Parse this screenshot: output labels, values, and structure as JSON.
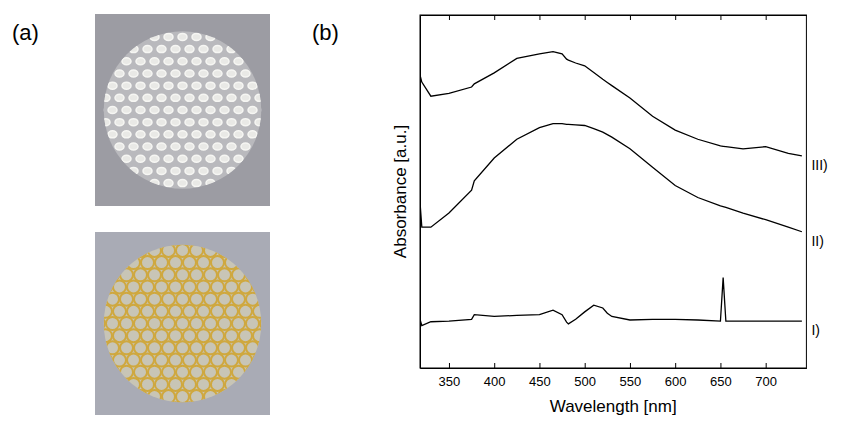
{
  "panel_labels": [
    "(a)",
    "(b)"
  ],
  "chart_data": {
    "type": "line",
    "xlabel": "Wavelength [nm]",
    "ylabel": "Absorbance [a.u.]",
    "x": [
      318,
      320,
      330,
      350,
      375,
      378,
      400,
      425,
      450,
      465,
      475,
      480,
      482,
      490,
      500,
      510,
      520,
      525,
      530,
      550,
      575,
      600,
      625,
      650,
      653,
      656,
      675,
      700,
      725,
      740
    ],
    "xlim": [
      318,
      745
    ],
    "xticks": [
      350,
      400,
      450,
      500,
      550,
      600,
      650,
      700
    ],
    "ylim": [
      0,
      100
    ],
    "tick_labels": "x",
    "series": [
      {
        "name": "I)",
        "color": "#000000",
        "values": [
          13.8,
          12.0,
          13.1,
          13.3,
          13.8,
          15.1,
          14.6,
          14.9,
          15.1,
          16.4,
          15.1,
          13.0,
          12.5,
          13.8,
          15.9,
          17.8,
          17.0,
          15.5,
          14.6,
          13.6,
          13.8,
          13.8,
          13.6,
          13.3,
          25.6,
          13.3,
          13.3,
          13.3,
          13.3,
          13.3
        ]
      },
      {
        "name": "II)",
        "color": "#000000",
        "values": [
          47.0,
          39.9,
          39.9,
          43.9,
          50.4,
          53.0,
          59.5,
          64.8,
          68.1,
          69.2,
          69.2,
          69.0,
          69.0,
          68.9,
          68.7,
          67.8,
          66.8,
          66.1,
          65.4,
          62.1,
          56.9,
          51.7,
          48.3,
          45.9,
          45.7,
          45.5,
          43.9,
          42.0,
          39.9,
          38.6
        ]
      },
      {
        "name": "III)",
        "color": "#000000",
        "values": [
          83.0,
          81.0,
          77.0,
          77.8,
          79.6,
          80.5,
          83.6,
          87.7,
          89.0,
          89.6,
          89.0,
          87.5,
          87.2,
          86.4,
          85.6,
          83.7,
          81.8,
          80.9,
          80.0,
          76.5,
          71.3,
          67.4,
          64.8,
          62.9,
          62.8,
          62.7,
          62.1,
          62.7,
          60.8,
          60.1
        ]
      }
    ]
  }
}
